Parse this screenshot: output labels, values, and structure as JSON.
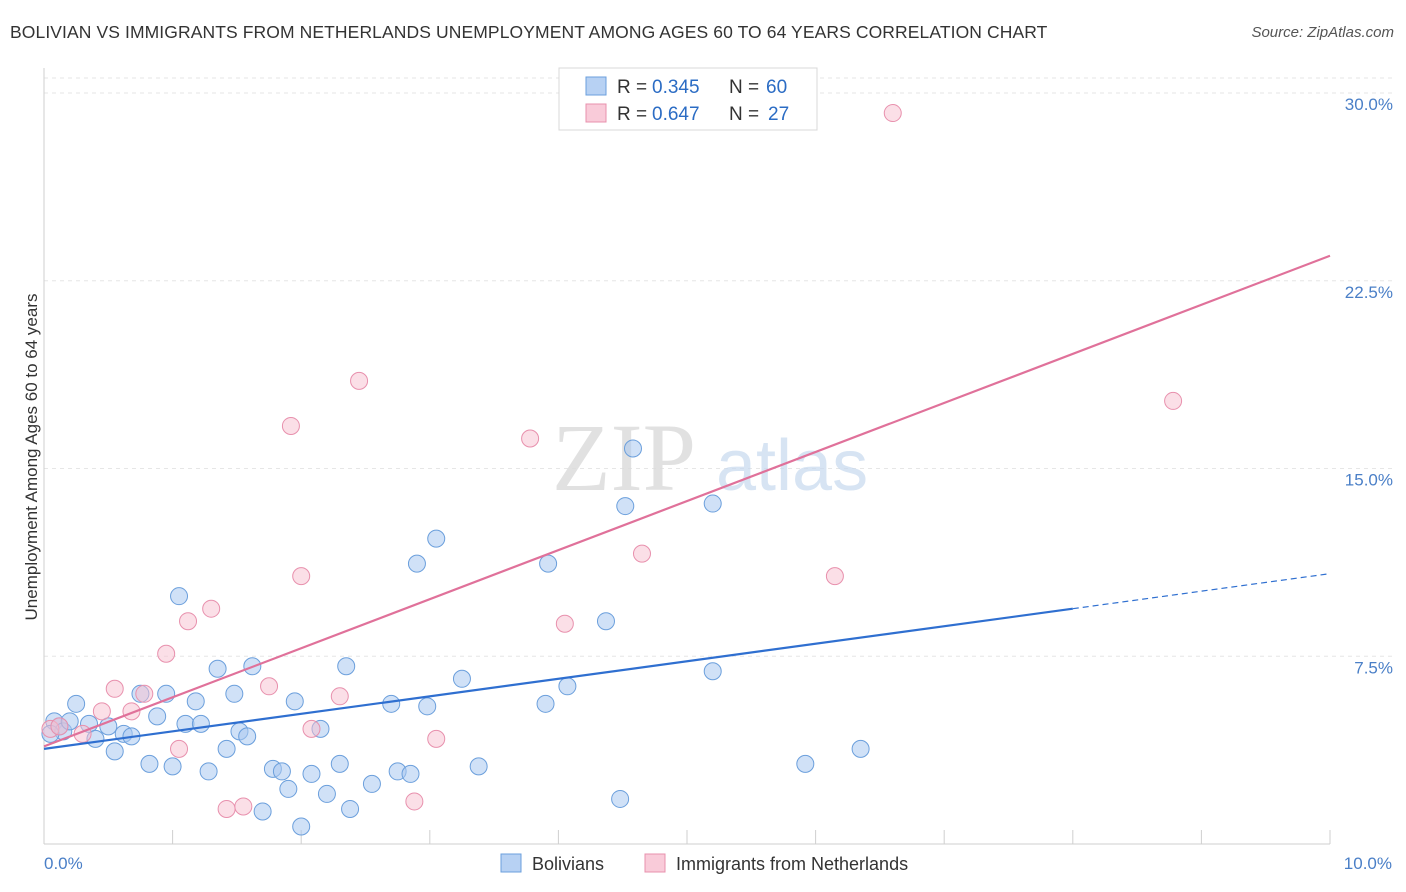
{
  "header": {
    "title": "BOLIVIAN VS IMMIGRANTS FROM NETHERLANDS UNEMPLOYMENT AMONG AGES 60 TO 64 YEARS CORRELATION CHART",
    "source": "Source: ZipAtlas.com"
  },
  "watermark": {
    "zip": "ZIP",
    "atlas": "atlas"
  },
  "chart_data": {
    "type": "scatter",
    "title": "BOLIVIAN VS IMMIGRANTS FROM NETHERLANDS UNEMPLOYMENT AMONG AGES 60 TO 64 YEARS CORRELATION CHART",
    "xlabel": "",
    "ylabel": "Unemployment Among Ages 60 to 64 years",
    "xlim": [
      0,
      10
    ],
    "ylim": [
      0,
      31
    ],
    "x_tick_labels": [
      "0.0%",
      "10.0%"
    ],
    "y_ticks": [
      7.5,
      15.0,
      22.5,
      30.0
    ],
    "y_tick_labels": [
      "7.5%",
      "15.0%",
      "22.5%",
      "30.0%"
    ],
    "grid": "horizontal dashed",
    "legend_position": "top-center",
    "series": [
      {
        "name": "Bolivians",
        "color": "#a9c8f0",
        "stroke": "#6b9fdc",
        "line_color": "#2f6fd0",
        "R": "0.345",
        "N": "60",
        "trend": {
          "x0": 0,
          "y0": 3.8,
          "x1": 8.0,
          "y1": 9.4,
          "dashed_to_x": 10.0,
          "dashed_to_y": 10.8
        },
        "points": [
          [
            0.08,
            4.9
          ],
          [
            0.12,
            4.7
          ],
          [
            0.15,
            4.5
          ],
          [
            0.2,
            4.9
          ],
          [
            0.25,
            5.6
          ],
          [
            0.35,
            4.8
          ],
          [
            0.4,
            4.2
          ],
          [
            0.5,
            4.7
          ],
          [
            0.55,
            3.7
          ],
          [
            0.62,
            4.4
          ],
          [
            0.68,
            4.3
          ],
          [
            0.75,
            6.0
          ],
          [
            0.82,
            3.2
          ],
          [
            0.88,
            5.1
          ],
          [
            0.95,
            6.0
          ],
          [
            1.0,
            3.1
          ],
          [
            1.05,
            9.9
          ],
          [
            1.1,
            4.8
          ],
          [
            1.18,
            5.7
          ],
          [
            1.22,
            4.8
          ],
          [
            1.28,
            2.9
          ],
          [
            1.35,
            7.0
          ],
          [
            1.42,
            3.8
          ],
          [
            1.48,
            6.0
          ],
          [
            1.52,
            4.5
          ],
          [
            1.58,
            4.3
          ],
          [
            1.62,
            7.1
          ],
          [
            1.7,
            1.3
          ],
          [
            1.78,
            3.0
          ],
          [
            1.85,
            2.9
          ],
          [
            1.9,
            2.2
          ],
          [
            1.95,
            5.7
          ],
          [
            2.0,
            0.7
          ],
          [
            2.08,
            2.8
          ],
          [
            2.15,
            4.6
          ],
          [
            2.2,
            2.0
          ],
          [
            2.3,
            3.2
          ],
          [
            2.35,
            7.1
          ],
          [
            2.38,
            1.4
          ],
          [
            2.55,
            2.4
          ],
          [
            2.7,
            5.6
          ],
          [
            2.75,
            2.9
          ],
          [
            2.85,
            2.8
          ],
          [
            2.9,
            11.2
          ],
          [
            2.98,
            5.5
          ],
          [
            3.05,
            12.2
          ],
          [
            3.25,
            6.6
          ],
          [
            3.38,
            3.1
          ],
          [
            3.9,
            5.6
          ],
          [
            3.92,
            11.2
          ],
          [
            4.07,
            6.3
          ],
          [
            4.37,
            8.9
          ],
          [
            4.48,
            1.8
          ],
          [
            4.52,
            13.5
          ],
          [
            4.58,
            15.8
          ],
          [
            5.2,
            13.6
          ],
          [
            5.2,
            6.9
          ],
          [
            5.92,
            3.2
          ],
          [
            6.35,
            3.8
          ],
          [
            0.05,
            4.4
          ]
        ]
      },
      {
        "name": "Immigrants from Netherlands",
        "color": "#f7c0d0",
        "stroke": "#e890ad",
        "line_color": "#e0719a",
        "R": "0.647",
        "N": "27",
        "trend": {
          "x0": 0,
          "y0": 3.9,
          "x1": 10.0,
          "y1": 23.5
        },
        "points": [
          [
            0.05,
            4.6
          ],
          [
            0.12,
            4.7
          ],
          [
            0.3,
            4.4
          ],
          [
            0.45,
            5.3
          ],
          [
            0.55,
            6.2
          ],
          [
            0.68,
            5.3
          ],
          [
            0.78,
            6.0
          ],
          [
            0.95,
            7.6
          ],
          [
            1.05,
            3.8
          ],
          [
            1.12,
            8.9
          ],
          [
            1.3,
            9.4
          ],
          [
            1.42,
            1.4
          ],
          [
            1.55,
            1.5
          ],
          [
            1.75,
            6.3
          ],
          [
            1.92,
            16.7
          ],
          [
            2.0,
            10.7
          ],
          [
            2.08,
            4.6
          ],
          [
            2.3,
            5.9
          ],
          [
            2.45,
            18.5
          ],
          [
            2.88,
            1.7
          ],
          [
            3.05,
            4.2
          ],
          [
            3.78,
            16.2
          ],
          [
            4.05,
            8.8
          ],
          [
            4.65,
            11.6
          ],
          [
            6.15,
            10.7
          ],
          [
            6.6,
            29.2
          ],
          [
            8.78,
            17.7
          ]
        ]
      }
    ]
  }
}
